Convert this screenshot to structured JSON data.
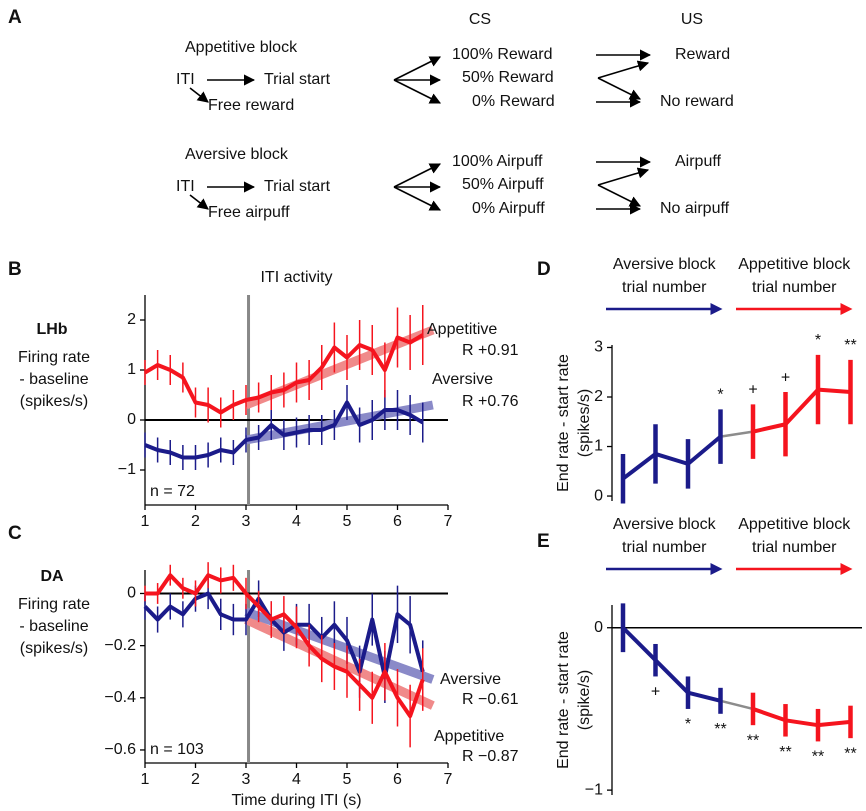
{
  "panel_labels": [
    "A",
    "B",
    "C",
    "D",
    "E"
  ],
  "diagram": {
    "headers": [
      "CS",
      "US"
    ],
    "blocks": [
      {
        "title": "Appetitive block",
        "iti": "ITI",
        "trial_start": "Trial start",
        "free": "Free reward",
        "cs": [
          "100% Reward",
          "50% Reward",
          "0% Reward"
        ],
        "us": [
          "Reward",
          "No reward"
        ],
        "color": "#f5141e"
      },
      {
        "title": "Aversive block",
        "iti": "ITI",
        "trial_start": "Trial start",
        "free": "Free airpuff",
        "cs": [
          "100% Airpuff",
          "50% Airpuff",
          "0% Airpuff"
        ],
        "us": [
          "Airpuff",
          "No airpuff"
        ],
        "color": "#1b1b8a"
      }
    ]
  },
  "chart_data": [
    {
      "type": "line",
      "title": "ITI activity",
      "region": "LHb",
      "ylabel": [
        "Firing rate",
        "- baseline",
        "(spikes/s)"
      ],
      "n_label": "n = 72",
      "xlim": [
        1,
        7
      ],
      "xticks": [
        1,
        2,
        3,
        4,
        5,
        6,
        7
      ],
      "ylim": [
        -1.7,
        2.5
      ],
      "yticks": [
        {
          "value": -1,
          "label": "−1"
        },
        0,
        1,
        2
      ],
      "hline": 0,
      "vline": 3.05,
      "x": [
        1,
        1.25,
        1.5,
        1.75,
        2,
        2.25,
        2.5,
        2.75,
        3,
        3.25,
        3.5,
        3.75,
        4,
        4.25,
        4.5,
        4.75,
        5,
        5.25,
        5.5,
        5.75,
        6,
        6.25,
        6.5
      ],
      "series": [
        {
          "name": "Appetitive",
          "r_label": "R +0.91",
          "color": "#f5141e",
          "fit_color": "#f08a8a",
          "values": [
            0.95,
            1.1,
            1.0,
            0.85,
            0.35,
            0.3,
            0.15,
            0.3,
            0.4,
            0.45,
            0.55,
            0.6,
            0.75,
            0.8,
            1.05,
            1.45,
            1.25,
            1.5,
            1.4,
            1.0,
            1.65,
            1.55,
            1.7
          ],
          "errors": [
            0.25,
            0.3,
            0.3,
            0.3,
            0.3,
            0.35,
            0.3,
            0.3,
            0.3,
            0.3,
            0.35,
            0.35,
            0.4,
            0.4,
            0.45,
            0.5,
            0.45,
            0.5,
            0.5,
            0.55,
            0.6,
            0.55,
            0.6
          ],
          "fit": {
            "x": [
              3,
              6.7
            ],
            "y": [
              0.3,
              1.8
            ]
          }
        },
        {
          "name": "Aversive",
          "r_label": "R +0.76",
          "color": "#1b1b8a",
          "fit_color": "#8a8ac8",
          "values": [
            -0.5,
            -0.6,
            -0.65,
            -0.75,
            -0.75,
            -0.7,
            -0.6,
            -0.65,
            -0.4,
            -0.35,
            -0.1,
            -0.3,
            -0.25,
            -0.2,
            -0.2,
            -0.1,
            0.35,
            -0.1,
            0.0,
            0.2,
            0.2,
            0.1,
            -0.05
          ],
          "errors": [
            0.25,
            0.25,
            0.25,
            0.25,
            0.25,
            0.25,
            0.25,
            0.25,
            0.25,
            0.25,
            0.3,
            0.3,
            0.3,
            0.3,
            0.3,
            0.3,
            0.35,
            0.35,
            0.4,
            0.4,
            0.4,
            0.4,
            0.4
          ],
          "fit": {
            "x": [
              3,
              6.7
            ],
            "y": [
              -0.4,
              0.3
            ]
          }
        }
      ]
    },
    {
      "type": "line",
      "region": "DA",
      "ylabel": [
        "Firing rate",
        "- baseline",
        "(spikes/s)"
      ],
      "n_label": "n = 103",
      "xlabel": "Time during ITI (s)",
      "xlim": [
        1,
        7
      ],
      "xticks": [
        1,
        2,
        3,
        4,
        5,
        6,
        7
      ],
      "ylim": [
        -0.65,
        0.09
      ],
      "yticks": [
        {
          "value": -0.6,
          "label": "−0.6"
        },
        {
          "value": -0.4,
          "label": "−0.4"
        },
        {
          "value": -0.2,
          "label": "−0.2"
        },
        0
      ],
      "hline": 0,
      "vline": 3.05,
      "x": [
        1,
        1.25,
        1.5,
        1.75,
        2,
        2.25,
        2.5,
        2.75,
        3,
        3.25,
        3.5,
        3.75,
        4,
        4.25,
        4.5,
        4.75,
        5,
        5.25,
        5.5,
        5.75,
        6,
        6.25,
        6.5
      ],
      "series": [
        {
          "name": "Appetitive",
          "r_label": "R −0.87",
          "color": "#f5141e",
          "fit_color": "#f08a8a",
          "values": [
            0.0,
            0.0,
            0.07,
            0.02,
            0.0,
            0.07,
            0.05,
            0.06,
            0.0,
            -0.05,
            -0.1,
            -0.08,
            -0.13,
            -0.2,
            -0.25,
            -0.28,
            -0.3,
            -0.35,
            -0.4,
            -0.3,
            -0.4,
            -0.47,
            -0.33
          ],
          "errors": [
            0.03,
            0.04,
            0.04,
            0.04,
            0.05,
            0.05,
            0.05,
            0.05,
            0.06,
            0.06,
            0.07,
            0.07,
            0.08,
            0.08,
            0.09,
            0.09,
            0.1,
            0.1,
            0.1,
            0.11,
            0.11,
            0.12,
            0.12
          ],
          "fit": {
            "x": [
              3,
              6.7
            ],
            "y": [
              -0.1,
              -0.43
            ]
          }
        },
        {
          "name": "Aversive",
          "r_label": "R −0.61",
          "color": "#1b1b8a",
          "fit_color": "#8a8ac8",
          "values": [
            -0.05,
            -0.1,
            -0.05,
            -0.08,
            -0.02,
            0.0,
            -0.08,
            -0.1,
            -0.1,
            -0.02,
            -0.1,
            -0.15,
            -0.12,
            -0.12,
            -0.17,
            -0.12,
            -0.18,
            -0.3,
            -0.1,
            -0.32,
            -0.08,
            -0.12,
            -0.3
          ],
          "errors": [
            0.05,
            0.05,
            0.05,
            0.05,
            0.05,
            0.06,
            0.06,
            0.06,
            0.06,
            0.07,
            0.07,
            0.07,
            0.08,
            0.08,
            0.08,
            0.09,
            0.09,
            0.1,
            0.1,
            0.1,
            0.11,
            0.11,
            0.12
          ],
          "fit": {
            "x": [
              3,
              6.7
            ],
            "y": [
              -0.07,
              -0.33
            ]
          }
        }
      ]
    },
    {
      "type": "errorbar",
      "ylabel": [
        "End rate - start rate",
        "(spikes/s)"
      ],
      "significance_side": "above",
      "connector_color": "#8c8c8c",
      "ylim": [
        -0.1,
        3.05
      ],
      "yticks": [
        0,
        1,
        2,
        3
      ],
      "groups": [
        {
          "label": [
            "Aversive block",
            "trial number"
          ],
          "color": "#1b1b8a",
          "values": [
            0.35,
            0.85,
            0.65,
            1.2
          ],
          "errors": [
            0.5,
            0.6,
            0.5,
            0.55
          ],
          "significance": [
            null,
            null,
            null,
            "*"
          ]
        },
        {
          "label": [
            "Appetitive block",
            "trial number"
          ],
          "color": "#f5141e",
          "values": [
            1.3,
            1.45,
            2.15,
            2.1
          ],
          "errors": [
            0.55,
            0.65,
            0.7,
            0.65
          ],
          "significance": [
            "+",
            "+",
            "*",
            "**"
          ]
        }
      ]
    },
    {
      "type": "errorbar",
      "ylabel": [
        "End rate - start rate",
        "(spike/s)"
      ],
      "significance_side": "below",
      "connector_color": "#8c8c8c",
      "hline": 0,
      "ylim": [
        -1.03,
        0.14
      ],
      "yticks": [
        {
          "value": -1,
          "label": "−1"
        },
        0
      ],
      "groups": [
        {
          "label": [
            "Aversive block",
            "trial number"
          ],
          "color": "#1b1b8a",
          "values": [
            0.0,
            -0.2,
            -0.4,
            -0.45
          ],
          "errors": [
            0.15,
            0.1,
            0.1,
            0.08
          ],
          "significance": [
            null,
            "+",
            "*",
            "**"
          ]
        },
        {
          "label": [
            "Appetitive block",
            "trial number"
          ],
          "color": "#f5141e",
          "values": [
            -0.5,
            -0.57,
            -0.6,
            -0.58
          ],
          "errors": [
            0.1,
            0.1,
            0.1,
            0.1
          ],
          "significance": [
            "**",
            "**",
            "**",
            "**"
          ]
        }
      ]
    }
  ]
}
